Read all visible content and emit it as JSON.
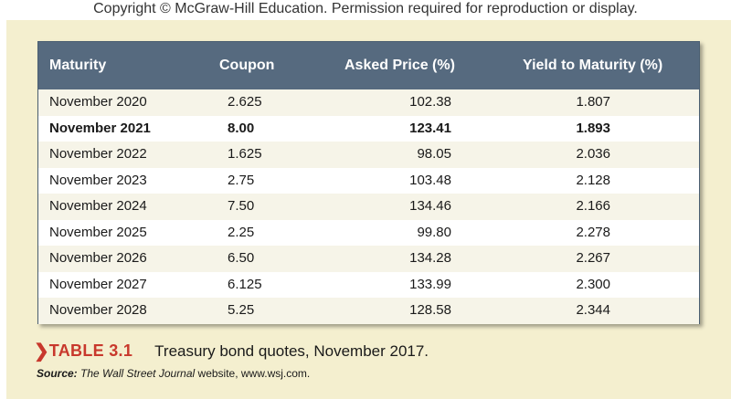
{
  "copyright": "Copyright © McGraw-Hill Education. Permission required for reproduction or display.",
  "colors": {
    "panel_background": "#f4efcf",
    "header_background": "#566a7f",
    "accent": "#c8382c"
  },
  "table": {
    "headers": [
      "Maturity",
      "Coupon",
      "Asked Price (%)",
      "Yield to Maturity (%)"
    ],
    "rows": [
      {
        "maturity": "November 2020",
        "coupon": "2.625",
        "asked": "102.38",
        "ytm": "1.807",
        "bold": false
      },
      {
        "maturity": "November 2021",
        "coupon": "8.00",
        "asked": "123.41",
        "ytm": "1.893",
        "bold": true
      },
      {
        "maturity": "November 2022",
        "coupon": "1.625",
        "asked": "98.05",
        "ytm": "2.036",
        "bold": false
      },
      {
        "maturity": "November 2023",
        "coupon": "2.75",
        "asked": "103.48",
        "ytm": "2.128",
        "bold": false
      },
      {
        "maturity": "November 2024",
        "coupon": "7.50",
        "asked": "134.46",
        "ytm": "2.166",
        "bold": false
      },
      {
        "maturity": "November 2025",
        "coupon": "2.25",
        "asked": "99.80",
        "ytm": "2.278",
        "bold": false
      },
      {
        "maturity": "November 2026",
        "coupon": "6.50",
        "asked": "134.28",
        "ytm": "2.267",
        "bold": false
      },
      {
        "maturity": "November 2027",
        "coupon": "6.125",
        "asked": "133.99",
        "ytm": "2.300",
        "bold": false
      },
      {
        "maturity": "November 2028",
        "coupon": "5.25",
        "asked": "128.58",
        "ytm": "2.344",
        "bold": false
      }
    ]
  },
  "caption": {
    "chevron": "❯",
    "label": "TABLE 3.1",
    "title": "Treasury bond quotes, November 2017."
  },
  "source": {
    "label": "Source:",
    "publication": "The Wall Street Journal",
    "rest": " website, www.wsj.com."
  }
}
